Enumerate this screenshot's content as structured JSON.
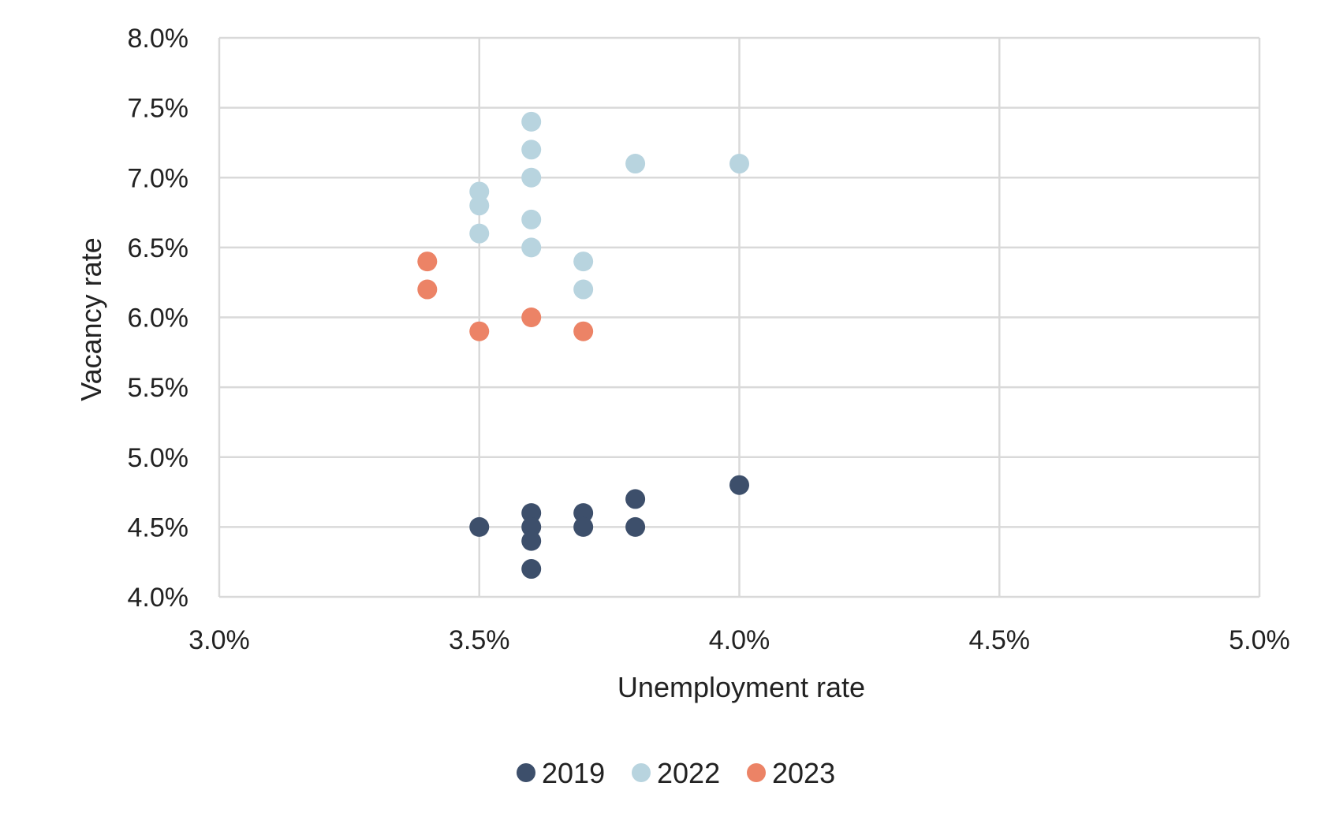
{
  "chart_data": {
    "type": "scatter",
    "title": "",
    "xlabel": "Unemployment rate",
    "ylabel": "Vacancy rate",
    "xlim": [
      3.0,
      5.0
    ],
    "ylim": [
      4.0,
      8.0
    ],
    "x_ticks": [
      "3.0%",
      "3.5%",
      "4.0%",
      "4.5%",
      "5.0%"
    ],
    "y_ticks": [
      "4.0%",
      "4.5%",
      "5.0%",
      "5.5%",
      "6.0%",
      "6.5%",
      "7.0%",
      "7.5%",
      "8.0%"
    ],
    "grid": true,
    "legend_position": "bottom",
    "series": [
      {
        "name": "2019",
        "color": "#3d4f6b",
        "points": [
          {
            "x": 3.5,
            "y": 4.5
          },
          {
            "x": 3.6,
            "y": 4.6
          },
          {
            "x": 3.6,
            "y": 4.5
          },
          {
            "x": 3.6,
            "y": 4.4
          },
          {
            "x": 3.6,
            "y": 4.2
          },
          {
            "x": 3.7,
            "y": 4.6
          },
          {
            "x": 3.7,
            "y": 4.5
          },
          {
            "x": 3.8,
            "y": 4.7
          },
          {
            "x": 3.8,
            "y": 4.5
          },
          {
            "x": 4.0,
            "y": 4.8
          }
        ]
      },
      {
        "name": "2022",
        "color": "#b8d4df",
        "points": [
          {
            "x": 3.5,
            "y": 6.9
          },
          {
            "x": 3.5,
            "y": 6.8
          },
          {
            "x": 3.5,
            "y": 6.6
          },
          {
            "x": 3.6,
            "y": 7.4
          },
          {
            "x": 3.6,
            "y": 7.2
          },
          {
            "x": 3.6,
            "y": 7.0
          },
          {
            "x": 3.6,
            "y": 6.7
          },
          {
            "x": 3.6,
            "y": 6.5
          },
          {
            "x": 3.7,
            "y": 6.4
          },
          {
            "x": 3.7,
            "y": 6.2
          },
          {
            "x": 3.8,
            "y": 7.1
          },
          {
            "x": 4.0,
            "y": 7.1
          }
        ]
      },
      {
        "name": "2023",
        "color": "#ec8366",
        "points": [
          {
            "x": 3.4,
            "y": 6.4
          },
          {
            "x": 3.4,
            "y": 6.2
          },
          {
            "x": 3.5,
            "y": 5.9
          },
          {
            "x": 3.6,
            "y": 6.0
          },
          {
            "x": 3.7,
            "y": 5.9
          }
        ]
      }
    ]
  }
}
